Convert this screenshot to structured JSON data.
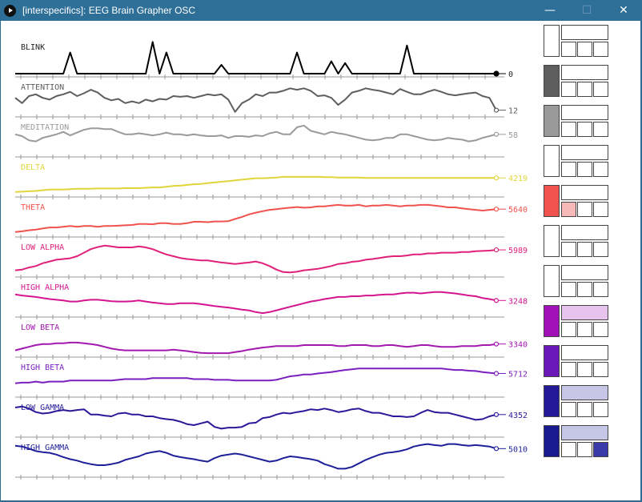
{
  "window": {
    "title": "[interspecifics]: EEG Brain Grapher OSC",
    "icon": "play-circle-icon",
    "controls": [
      "minimize-icon",
      "maximize-icon",
      "close-icon"
    ],
    "minimize_glyph": "—",
    "maximize_glyph": "☐",
    "close_glyph": "✕"
  },
  "channels": [
    {
      "label": "BLINK",
      "value": "0",
      "color": "#000000",
      "swatch": "#ffffff",
      "wide": "#ffffff",
      "small": [
        "#ffffff",
        "#ffffff",
        "#ffffff"
      ]
    },
    {
      "label": "ATTENTION",
      "value": "12",
      "color": "#5e5e5e",
      "swatch": "#5e5e5e",
      "wide": "#ffffff",
      "small": [
        "#ffffff",
        "#ffffff",
        "#ffffff"
      ]
    },
    {
      "label": "MEDITATION",
      "value": "58",
      "color": "#9a9a9a",
      "swatch": "#9a9a9a",
      "wide": "#ffffff",
      "small": [
        "#ffffff",
        "#ffffff",
        "#ffffff"
      ]
    },
    {
      "label": "DELTA",
      "value": "4219",
      "color": "#e0d63a",
      "swatch": "#ffffff",
      "wide": "#ffffff",
      "small": [
        "#ffffff",
        "#ffffff",
        "#ffffff"
      ]
    },
    {
      "label": "THETA",
      "value": "5640",
      "color": "#f0524e",
      "swatch": "#f0524e",
      "wide": "#ffffff",
      "small": [
        "#f7b9b7",
        "#ffffff",
        "#ffffff"
      ]
    },
    {
      "label": "LOW ALPHA",
      "value": "5989",
      "color": "#e0207a",
      "swatch": "#ffffff",
      "wide": "#ffffff",
      "small": [
        "#ffffff",
        "#ffffff",
        "#ffffff"
      ]
    },
    {
      "label": "HIGH ALPHA",
      "value": "3248",
      "color": "#d4158f",
      "swatch": "#ffffff",
      "wide": "#ffffff",
      "small": [
        "#ffffff",
        "#ffffff",
        "#ffffff"
      ]
    },
    {
      "label": "LOW BETA",
      "value": "3340",
      "color": "#a218b0",
      "swatch": "#a012b8",
      "wide": "#e6c4ee",
      "small": [
        "#ffffff",
        "#ffffff",
        "#ffffff"
      ]
    },
    {
      "label": "HIGH BETA",
      "value": "5712",
      "color": "#7a1fc0",
      "swatch": "#6a18b8",
      "wide": "#ffffff",
      "small": [
        "#ffffff",
        "#ffffff",
        "#ffffff"
      ]
    },
    {
      "label": "LOW GAMMA",
      "value": "4352",
      "color": "#2a1a9a",
      "swatch": "#241a98",
      "wide": "#c8c6e6",
      "small": [
        "#ffffff",
        "#ffffff",
        "#ffffff"
      ]
    },
    {
      "label": "HIGH GAMMA",
      "value": "5010",
      "color": "#1f1f9a",
      "swatch": "#1a1a8e",
      "wide": "#c6c6e6",
      "small": [
        "#ffffff",
        "#ffffff",
        "#3a3aa8"
      ]
    }
  ],
  "series": [
    [
      0,
      0,
      0,
      0,
      0,
      0,
      0,
      0,
      0.6,
      0,
      0,
      0,
      0,
      0,
      0,
      0,
      0,
      0,
      0,
      0,
      0.9,
      0,
      0.6,
      0,
      0,
      0,
      0,
      0,
      0,
      0,
      0.25,
      0,
      0,
      0,
      0,
      0,
      0,
      0,
      0,
      0,
      0,
      0.6,
      0,
      0,
      0,
      0,
      0.35,
      0,
      0.3,
      0,
      0,
      0,
      0,
      0,
      0,
      0,
      0,
      0.8,
      0,
      0,
      0,
      0,
      0,
      0,
      0,
      0,
      0,
      0,
      0,
      0,
      0
    ],
    [
      0.45,
      0.3,
      0.5,
      0.55,
      0.45,
      0.4,
      0.5,
      0.55,
      0.62,
      0.5,
      0.58,
      0.68,
      0.6,
      0.45,
      0.38,
      0.42,
      0.3,
      0.35,
      0.3,
      0.4,
      0.35,
      0.42,
      0.4,
      0.5,
      0.48,
      0.5,
      0.45,
      0.5,
      0.55,
      0.52,
      0.55,
      0.4,
      0.05,
      0.3,
      0.4,
      0.55,
      0.5,
      0.6,
      0.6,
      0.65,
      0.72,
      0.68,
      0.72,
      0.65,
      0.5,
      0.52,
      0.45,
      0.25,
      0.4,
      0.6,
      0.65,
      0.72,
      0.68,
      0.65,
      0.6,
      0.55,
      0.7,
      0.62,
      0.55,
      0.55,
      0.62,
      0.68,
      0.62,
      0.55,
      0.52,
      0.55,
      0.58,
      0.6,
      0.5,
      0.45,
      0.1
    ],
    [
      0.55,
      0.5,
      0.38,
      0.35,
      0.45,
      0.5,
      0.55,
      0.62,
      0.52,
      0.6,
      0.68,
      0.72,
      0.72,
      0.7,
      0.7,
      0.62,
      0.55,
      0.55,
      0.58,
      0.55,
      0.52,
      0.55,
      0.6,
      0.55,
      0.55,
      0.52,
      0.55,
      0.52,
      0.5,
      0.5,
      0.52,
      0.45,
      0.5,
      0.5,
      0.48,
      0.52,
      0.5,
      0.58,
      0.62,
      0.55,
      0.55,
      0.75,
      0.8,
      0.65,
      0.6,
      0.55,
      0.62,
      0.58,
      0.55,
      0.5,
      0.45,
      0.4,
      0.38,
      0.4,
      0.45,
      0.45,
      0.55,
      0.55,
      0.5,
      0.45,
      0.4,
      0.38,
      0.4,
      0.45,
      0.42,
      0.4,
      0.35,
      0.38,
      0.45,
      0.5,
      0.55
    ],
    [
      0.05,
      0.06,
      0.07,
      0.08,
      0.1,
      0.12,
      0.12,
      0.12,
      0.13,
      0.14,
      0.14,
      0.14,
      0.15,
      0.15,
      0.15,
      0.15,
      0.16,
      0.16,
      0.16,
      0.17,
      0.18,
      0.18,
      0.2,
      0.22,
      0.23,
      0.25,
      0.27,
      0.28,
      0.3,
      0.32,
      0.34,
      0.36,
      0.38,
      0.4,
      0.42,
      0.44,
      0.44,
      0.45,
      0.46,
      0.48,
      0.48,
      0.48,
      0.48,
      0.48,
      0.48,
      0.47,
      0.47,
      0.46,
      0.46,
      0.46,
      0.46,
      0.45,
      0.45,
      0.45,
      0.45,
      0.45,
      0.45,
      0.45,
      0.45,
      0.45,
      0.45,
      0.45,
      0.45,
      0.45,
      0.45,
      0.45,
      0.45,
      0.45,
      0.45,
      0.45,
      0.45
    ],
    [
      0.05,
      0.07,
      0.1,
      0.12,
      0.15,
      0.18,
      0.18,
      0.2,
      0.22,
      0.2,
      0.22,
      0.22,
      0.2,
      0.22,
      0.22,
      0.23,
      0.24,
      0.25,
      0.28,
      0.28,
      0.27,
      0.3,
      0.3,
      0.28,
      0.28,
      0.3,
      0.34,
      0.34,
      0.33,
      0.35,
      0.35,
      0.36,
      0.42,
      0.48,
      0.55,
      0.6,
      0.64,
      0.68,
      0.7,
      0.72,
      0.74,
      0.76,
      0.74,
      0.75,
      0.78,
      0.78,
      0.8,
      0.82,
      0.8,
      0.8,
      0.82,
      0.78,
      0.8,
      0.8,
      0.82,
      0.8,
      0.78,
      0.8,
      0.8,
      0.82,
      0.82,
      0.8,
      0.78,
      0.75,
      0.75,
      0.72,
      0.7,
      0.68,
      0.66,
      0.68,
      0.7
    ],
    [
      0.1,
      0.12,
      0.18,
      0.22,
      0.3,
      0.35,
      0.4,
      0.42,
      0.44,
      0.5,
      0.6,
      0.7,
      0.76,
      0.8,
      0.78,
      0.75,
      0.75,
      0.75,
      0.78,
      0.75,
      0.7,
      0.62,
      0.55,
      0.5,
      0.45,
      0.42,
      0.4,
      0.38,
      0.38,
      0.35,
      0.32,
      0.3,
      0.28,
      0.3,
      0.32,
      0.35,
      0.3,
      0.22,
      0.12,
      0.05,
      0.04,
      0.06,
      0.1,
      0.12,
      0.14,
      0.18,
      0.22,
      0.28,
      0.3,
      0.34,
      0.36,
      0.4,
      0.42,
      0.45,
      0.48,
      0.5,
      0.5,
      0.52,
      0.55,
      0.55,
      0.58,
      0.58,
      0.6,
      0.6,
      0.6,
      0.62,
      0.62,
      0.64,
      0.65,
      0.66,
      0.68
    ],
    [
      0.55,
      0.52,
      0.5,
      0.48,
      0.45,
      0.42,
      0.4,
      0.38,
      0.35,
      0.35,
      0.38,
      0.4,
      0.4,
      0.38,
      0.36,
      0.35,
      0.35,
      0.36,
      0.38,
      0.35,
      0.32,
      0.3,
      0.28,
      0.28,
      0.3,
      0.3,
      0.3,
      0.28,
      0.25,
      0.22,
      0.2,
      0.18,
      0.15,
      0.12,
      0.1,
      0.05,
      0.02,
      0.05,
      0.1,
      0.15,
      0.2,
      0.25,
      0.3,
      0.35,
      0.38,
      0.42,
      0.45,
      0.48,
      0.48,
      0.5,
      0.5,
      0.52,
      0.52,
      0.54,
      0.55,
      0.55,
      0.58,
      0.6,
      0.6,
      0.58,
      0.6,
      0.62,
      0.62,
      0.6,
      0.58,
      0.55,
      0.52,
      0.5,
      0.45,
      0.42,
      0.38
    ],
    [
      0.1,
      0.15,
      0.2,
      0.25,
      0.28,
      0.28,
      0.3,
      0.3,
      0.32,
      0.32,
      0.3,
      0.28,
      0.25,
      0.2,
      0.15,
      0.12,
      0.1,
      0.1,
      0.1,
      0.1,
      0.1,
      0.1,
      0.1,
      0.12,
      0.1,
      0.08,
      0.05,
      0.03,
      0.02,
      0.02,
      0.02,
      0.02,
      0.05,
      0.08,
      0.12,
      0.15,
      0.18,
      0.2,
      0.22,
      0.22,
      0.22,
      0.22,
      0.25,
      0.25,
      0.25,
      0.25,
      0.25,
      0.22,
      0.22,
      0.25,
      0.25,
      0.25,
      0.22,
      0.22,
      0.25,
      0.25,
      0.22,
      0.2,
      0.22,
      0.25,
      0.25,
      0.22,
      0.2,
      0.2,
      0.2,
      0.22,
      0.22,
      0.22,
      0.25,
      0.25,
      0.28
    ],
    [
      0.3,
      0.32,
      0.32,
      0.35,
      0.32,
      0.35,
      0.35,
      0.35,
      0.38,
      0.38,
      0.38,
      0.38,
      0.38,
      0.38,
      0.38,
      0.4,
      0.42,
      0.42,
      0.42,
      0.42,
      0.45,
      0.45,
      0.45,
      0.45,
      0.45,
      0.45,
      0.42,
      0.42,
      0.42,
      0.4,
      0.4,
      0.4,
      0.38,
      0.38,
      0.38,
      0.38,
      0.38,
      0.38,
      0.4,
      0.45,
      0.5,
      0.52,
      0.55,
      0.55,
      0.58,
      0.6,
      0.62,
      0.65,
      0.68,
      0.7,
      0.72,
      0.72,
      0.72,
      0.72,
      0.72,
      0.72,
      0.72,
      0.72,
      0.72,
      0.72,
      0.72,
      0.72,
      0.72,
      0.7,
      0.68,
      0.68,
      0.66,
      0.65,
      0.62,
      0.6,
      0.58
    ],
    [
      0.75,
      0.78,
      0.72,
      0.62,
      0.58,
      0.6,
      0.65,
      0.68,
      0.65,
      0.68,
      0.7,
      0.55,
      0.55,
      0.52,
      0.5,
      0.58,
      0.6,
      0.55,
      0.55,
      0.5,
      0.5,
      0.45,
      0.42,
      0.4,
      0.35,
      0.28,
      0.25,
      0.3,
      0.35,
      0.2,
      0.15,
      0.18,
      0.18,
      0.2,
      0.3,
      0.32,
      0.45,
      0.48,
      0.55,
      0.6,
      0.58,
      0.62,
      0.65,
      0.7,
      0.68,
      0.72,
      0.68,
      0.62,
      0.65,
      0.7,
      0.72,
      0.65,
      0.6,
      0.6,
      0.55,
      0.5,
      0.5,
      0.48,
      0.5,
      0.6,
      0.68,
      0.62,
      0.6,
      0.6,
      0.55,
      0.5,
      0.45,
      0.4,
      0.42,
      0.5,
      0.55
    ],
    [
      0.8,
      0.78,
      0.72,
      0.65,
      0.62,
      0.6,
      0.55,
      0.48,
      0.42,
      0.38,
      0.32,
      0.28,
      0.25,
      0.25,
      0.28,
      0.32,
      0.4,
      0.45,
      0.5,
      0.58,
      0.62,
      0.65,
      0.6,
      0.52,
      0.48,
      0.45,
      0.42,
      0.38,
      0.35,
      0.45,
      0.52,
      0.55,
      0.58,
      0.55,
      0.5,
      0.45,
      0.4,
      0.35,
      0.38,
      0.45,
      0.5,
      0.48,
      0.45,
      0.42,
      0.38,
      0.28,
      0.22,
      0.15,
      0.15,
      0.2,
      0.3,
      0.4,
      0.48,
      0.55,
      0.6,
      0.62,
      0.65,
      0.7,
      0.78,
      0.82,
      0.85,
      0.82,
      0.8,
      0.85,
      0.85,
      0.82,
      0.8,
      0.82,
      0.8,
      0.78,
      0.72
    ]
  ]
}
